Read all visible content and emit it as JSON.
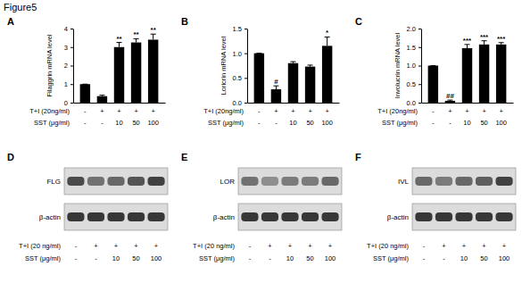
{
  "title": "Figure5",
  "chart_data": [
    {
      "type": "bar",
      "title": "A",
      "ylabel": "Filaggrin mRNA level",
      "categories": [
        null,
        null,
        null,
        null,
        null
      ],
      "values": [
        1.0,
        0.35,
        3.0,
        3.25,
        3.4
      ],
      "error": [
        0,
        0.05,
        0.25,
        0.2,
        0.3
      ],
      "significance": [
        null,
        null,
        "**",
        "**",
        "**"
      ],
      "color": "#000000",
      "ylim": [
        0,
        4
      ],
      "yticks": [
        0,
        1,
        2,
        3,
        4
      ],
      "conditions": [
        {
          "label": "T+I (20ng/ml)",
          "values": [
            "-",
            "+",
            "+",
            "+",
            "+"
          ]
        },
        {
          "label": "SST (μg/ml)",
          "values": [
            "-",
            "-",
            "10",
            "50",
            "100"
          ]
        }
      ]
    },
    {
      "type": "bar",
      "title": "B",
      "ylabel": "Loricrin mRNA level",
      "categories": [
        null,
        null,
        null,
        null,
        null
      ],
      "values": [
        1.0,
        0.27,
        0.8,
        0.73,
        1.15
      ],
      "error": [
        0,
        0.07,
        0.03,
        0.03,
        0.18
      ],
      "significance": [
        null,
        "#",
        null,
        null,
        "*"
      ],
      "color": "#000000",
      "ylim": [
        0,
        1.5
      ],
      "yticks": [
        {
          "value": 0,
          "label": "0.0"
        },
        0.5,
        {
          "value": 1,
          "label": "1.0"
        },
        1.5
      ],
      "conditions": [
        {
          "label": "T+I (20ng/ml)",
          "values": [
            "-",
            "+",
            "+",
            "+",
            "+"
          ]
        },
        {
          "label": "SST (μg/ml)",
          "values": [
            "-",
            "-",
            "10",
            "50",
            "100"
          ]
        }
      ]
    },
    {
      "type": "bar",
      "title": "C",
      "ylabel": "Involucrin mRNA level",
      "categories": [
        null,
        null,
        null,
        null,
        null
      ],
      "values": [
        1.0,
        0.05,
        1.47,
        1.57,
        1.57
      ],
      "error": [
        0,
        0.02,
        0.1,
        0.1,
        0.05
      ],
      "significance": [
        null,
        "##",
        "***",
        "***",
        "***"
      ],
      "color": "#000000",
      "ylim": [
        0,
        2
      ],
      "yticks": [
        {
          "value": 0,
          "label": "0.0"
        },
        0.5,
        {
          "value": 1,
          "label": "1.0"
        },
        1.5,
        {
          "value": 2,
          "label": "2.0"
        }
      ],
      "conditions": [
        {
          "label": "T+I (20ng/ml)",
          "values": [
            "-",
            "+",
            "+",
            "+",
            "+"
          ]
        },
        {
          "label": "SST (μg/ml)",
          "values": [
            "-",
            "-",
            "10",
            "50",
            "100"
          ]
        }
      ]
    }
  ],
  "blots": [
    {
      "title": "D",
      "rows": [
        {
          "label": "FLG",
          "intensity": [
            0.75,
            0.55,
            0.6,
            0.7,
            0.8
          ]
        },
        {
          "label": "β-actin",
          "intensity": [
            0.85,
            0.85,
            0.85,
            0.85,
            0.85
          ]
        }
      ],
      "conditions": [
        {
          "label": "T+I (20 ng/ml)",
          "values": [
            "-",
            "+",
            "+",
            "+",
            "+"
          ]
        },
        {
          "label": "SST (μg/ml)",
          "values": [
            "-",
            "-",
            "10",
            "50",
            "100"
          ]
        }
      ]
    },
    {
      "title": "E",
      "rows": [
        {
          "label": "LOR",
          "intensity": [
            0.55,
            0.4,
            0.5,
            0.5,
            0.6
          ]
        },
        {
          "label": "β-actin",
          "intensity": [
            0.85,
            0.85,
            0.85,
            0.85,
            0.85
          ]
        }
      ],
      "conditions": [
        {
          "label": "T+I (20 ng/ml)",
          "values": [
            "-",
            "+",
            "+",
            "+",
            "+"
          ]
        },
        {
          "label": "SST (μg/ml)",
          "values": [
            "-",
            "-",
            "10",
            "50",
            "100"
          ]
        }
      ]
    },
    {
      "title": "F",
      "rows": [
        {
          "label": "IVL",
          "intensity": [
            0.6,
            0.5,
            0.6,
            0.65,
            0.8
          ]
        },
        {
          "label": "β-actin",
          "intensity": [
            0.85,
            0.85,
            0.85,
            0.85,
            0.85
          ]
        }
      ],
      "conditions": [
        {
          "label": "T+I (20 ng/ml)",
          "values": [
            "-",
            "+",
            "+",
            "+",
            "+"
          ]
        },
        {
          "label": "SST (μg/ml)",
          "values": [
            "-",
            "-",
            "10",
            "50",
            "100"
          ]
        }
      ]
    }
  ]
}
